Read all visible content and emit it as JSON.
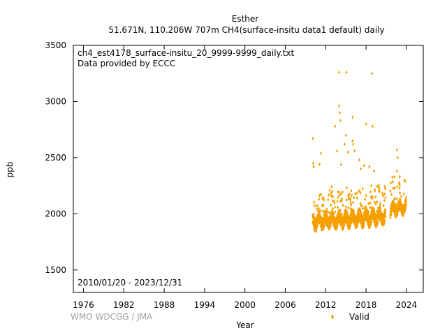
{
  "chart_data": {
    "type": "scatter",
    "title_line1": "Esther",
    "title_line2": "51.671N, 110.206W 707m    CH4(surface-insitu data1 default) daily",
    "file_label": "ch4_est4178_surface-insitu_20_9999-9999_daily.txt",
    "provider_label": "Data provided by ECCC",
    "date_range_label": "2010/01/20 - 2023/12/31",
    "xlabel": "Year",
    "ylabel": "ppb",
    "credit": "WMO WDCGG / JMA",
    "xlim": [
      1974.5,
      2026.5
    ],
    "ylim": [
      1300,
      3500
    ],
    "x_ticks": [
      1976,
      1982,
      1988,
      1994,
      2000,
      2006,
      2012,
      2018,
      2024
    ],
    "y_ticks": [
      1500,
      2000,
      2500,
      3000,
      3500
    ],
    "grid": false,
    "legend_position": "bottom-right",
    "series": [
      {
        "name": "Valid",
        "color": "#f5a000",
        "marker": "diamond",
        "segments": [
          {
            "start": 2010.05,
            "end": 2020.9,
            "baseline_start": 1930,
            "baseline_end": 1975,
            "spread": 55
          },
          {
            "start": 2021.6,
            "end": 2023.99,
            "baseline_start": 2030,
            "baseline_end": 2070,
            "spread": 45
          }
        ],
        "outliers": [
          {
            "x": 2010.1,
            "y": 2670
          },
          {
            "x": 2010.15,
            "y": 2450
          },
          {
            "x": 2010.2,
            "y": 2420
          },
          {
            "x": 2011.3,
            "y": 2540
          },
          {
            "x": 2011.1,
            "y": 2440
          },
          {
            "x": 2013.4,
            "y": 2780
          },
          {
            "x": 2013.7,
            "y": 2560
          },
          {
            "x": 2014.0,
            "y": 3260
          },
          {
            "x": 2014.0,
            "y": 2960
          },
          {
            "x": 2014.1,
            "y": 2900
          },
          {
            "x": 2014.2,
            "y": 2830
          },
          {
            "x": 2014.3,
            "y": 2440
          },
          {
            "x": 2014.8,
            "y": 2620
          },
          {
            "x": 2015.1,
            "y": 3260
          },
          {
            "x": 2015.0,
            "y": 2700
          },
          {
            "x": 2015.3,
            "y": 2550
          },
          {
            "x": 2016.0,
            "y": 2860
          },
          {
            "x": 2016.0,
            "y": 2650
          },
          {
            "x": 2016.1,
            "y": 2620
          },
          {
            "x": 2016.3,
            "y": 2560
          },
          {
            "x": 2017.0,
            "y": 2480
          },
          {
            "x": 2017.2,
            "y": 2400
          },
          {
            "x": 2017.7,
            "y": 2430
          },
          {
            "x": 2018.0,
            "y": 2800
          },
          {
            "x": 2018.5,
            "y": 2420
          },
          {
            "x": 2018.9,
            "y": 3250
          },
          {
            "x": 2019.0,
            "y": 2780
          },
          {
            "x": 2019.2,
            "y": 2380
          },
          {
            "x": 2022.6,
            "y": 2570
          },
          {
            "x": 2022.7,
            "y": 2500
          },
          {
            "x": 2022.6,
            "y": 2380
          }
        ]
      }
    ]
  }
}
